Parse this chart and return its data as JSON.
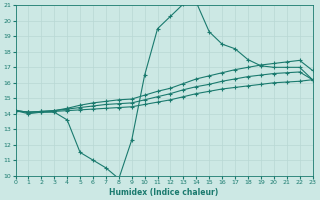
{
  "xlabel": "Humidex (Indice chaleur)",
  "bg_color": "#cce8e4",
  "line_color": "#1a7a6e",
  "grid_color": "#b8d8d4",
  "xlim": [
    0,
    23
  ],
  "ylim": [
    10,
    21
  ],
  "xticks": [
    0,
    1,
    2,
    3,
    4,
    5,
    6,
    7,
    8,
    9,
    10,
    11,
    12,
    13,
    14,
    15,
    16,
    17,
    18,
    19,
    20,
    21,
    22,
    23
  ],
  "yticks": [
    10,
    11,
    12,
    13,
    14,
    15,
    16,
    17,
    18,
    19,
    20,
    21
  ],
  "line1_x": [
    0,
    1,
    2,
    3,
    4,
    5,
    6,
    7,
    8,
    9,
    10,
    11,
    12,
    13,
    14,
    15,
    16,
    17,
    18,
    19,
    20,
    21,
    22,
    23
  ],
  "line1_y": [
    14.2,
    14.0,
    14.1,
    14.1,
    13.6,
    11.5,
    11.0,
    10.5,
    9.8,
    12.3,
    16.5,
    19.5,
    20.3,
    21.1,
    21.2,
    19.3,
    18.5,
    18.2,
    17.5,
    17.1,
    17.0,
    17.0,
    17.0,
    16.2
  ],
  "line2_x": [
    0,
    1,
    2,
    3,
    4,
    5,
    6,
    7,
    8,
    9,
    10,
    11,
    12,
    13,
    14,
    15,
    16,
    17,
    18,
    19,
    20,
    21,
    22,
    23
  ],
  "line2_y": [
    14.2,
    14.1,
    14.1,
    14.15,
    14.2,
    14.25,
    14.3,
    14.35,
    14.4,
    14.45,
    14.6,
    14.75,
    14.9,
    15.1,
    15.3,
    15.45,
    15.6,
    15.7,
    15.8,
    15.9,
    16.0,
    16.05,
    16.1,
    16.2
  ],
  "line3_x": [
    0,
    1,
    2,
    3,
    4,
    5,
    6,
    7,
    8,
    9,
    10,
    11,
    12,
    13,
    14,
    15,
    16,
    17,
    18,
    19,
    20,
    21,
    22,
    23
  ],
  "line3_y": [
    14.2,
    14.1,
    14.15,
    14.2,
    14.3,
    14.4,
    14.5,
    14.6,
    14.65,
    14.7,
    14.9,
    15.1,
    15.3,
    15.55,
    15.75,
    15.9,
    16.1,
    16.25,
    16.4,
    16.5,
    16.6,
    16.65,
    16.7,
    16.2
  ],
  "line4_x": [
    0,
    1,
    2,
    3,
    4,
    5,
    6,
    7,
    8,
    9,
    10,
    11,
    12,
    13,
    14,
    15,
    16,
    17,
    18,
    19,
    20,
    21,
    22,
    23
  ],
  "line4_y": [
    14.2,
    14.1,
    14.15,
    14.2,
    14.35,
    14.55,
    14.7,
    14.8,
    14.9,
    14.95,
    15.2,
    15.45,
    15.65,
    15.95,
    16.25,
    16.45,
    16.65,
    16.85,
    17.0,
    17.15,
    17.25,
    17.35,
    17.45,
    16.8
  ]
}
